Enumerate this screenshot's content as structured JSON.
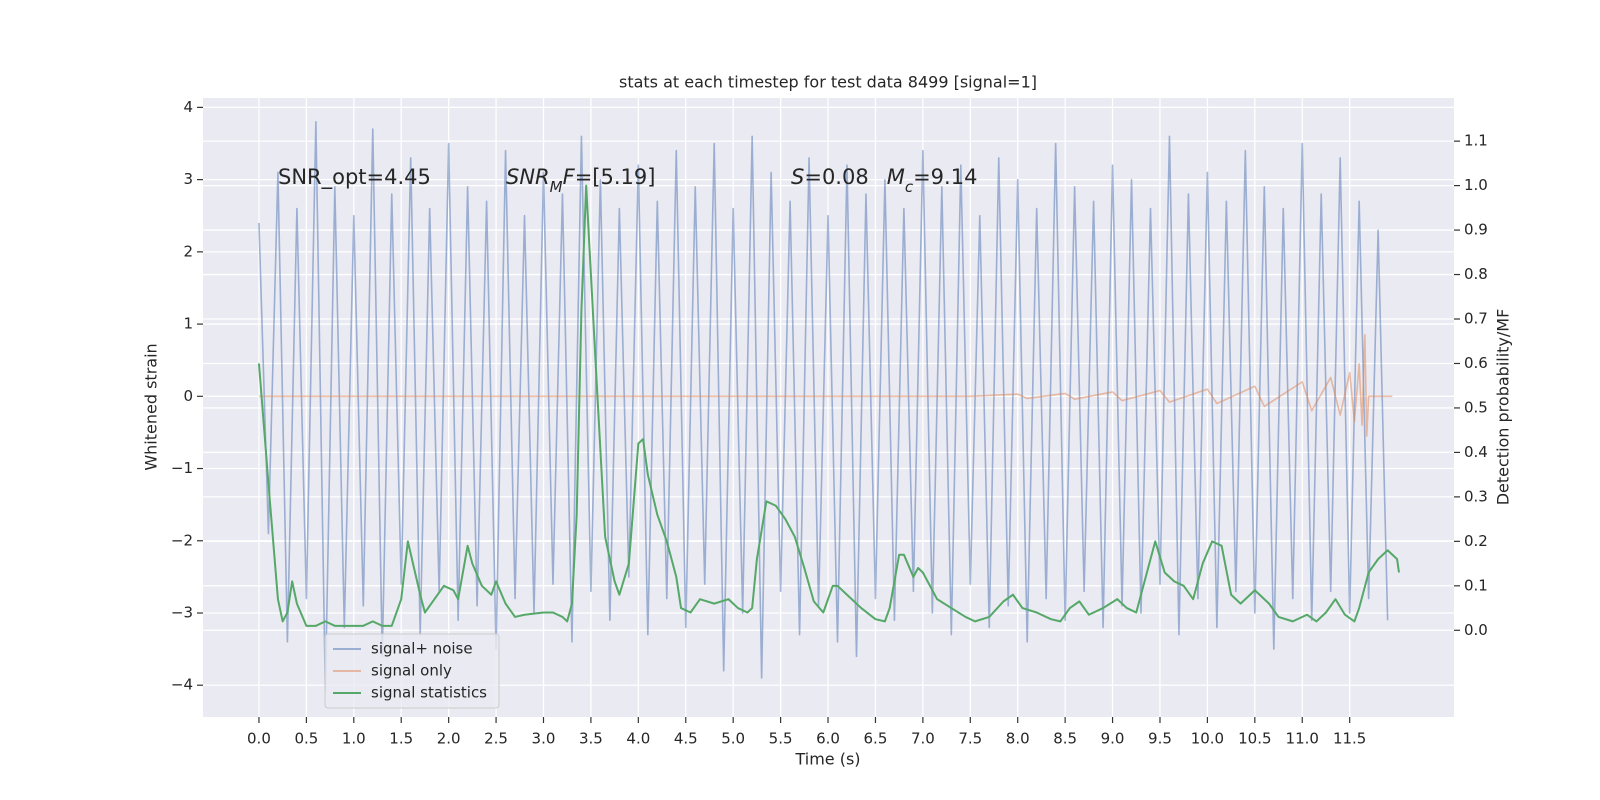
{
  "chart_data": {
    "type": "line",
    "title": "stats at each timestep for test data 8499 [signal=1]",
    "xlabel": "Time (s)",
    "ylabel": "Whitened strain",
    "y2label": "Detection probability/MF",
    "xlim": [
      -0.59,
      12.6
    ],
    "ylim": [
      -4.44,
      4.13
    ],
    "y2lim": [
      -0.195,
      1.197
    ],
    "xticks": [
      {
        "value": 0,
        "label": "0.0"
      },
      {
        "value": 0.5,
        "label": "0.5"
      },
      {
        "value": 1,
        "label": "1.0"
      },
      {
        "value": 1.5,
        "label": "1.5"
      },
      {
        "value": 2,
        "label": "2.0"
      },
      {
        "value": 2.5,
        "label": "2.5"
      },
      {
        "value": 3,
        "label": "3.0"
      },
      {
        "value": 3.5,
        "label": "3.5"
      },
      {
        "value": 4,
        "label": "4.0"
      },
      {
        "value": 4.5,
        "label": "4.5"
      },
      {
        "value": 5,
        "label": "5.0"
      },
      {
        "value": 5.5,
        "label": "5.5"
      },
      {
        "value": 6,
        "label": "6.0"
      },
      {
        "value": 6.5,
        "label": "6.5"
      },
      {
        "value": 7,
        "label": "7.0"
      },
      {
        "value": 7.5,
        "label": "7.5"
      },
      {
        "value": 8,
        "label": "8.0"
      },
      {
        "value": 8.5,
        "label": "8.5"
      },
      {
        "value": 9,
        "label": "9.0"
      },
      {
        "value": 9.5,
        "label": "9.5"
      },
      {
        "value": 10,
        "label": "10.0"
      },
      {
        "value": 10.5,
        "label": "10.5"
      },
      {
        "value": 11,
        "label": "11.0"
      },
      {
        "value": 11.5,
        "label": "11.5"
      }
    ],
    "yticks": [
      {
        "value": -4,
        "label": "−4"
      },
      {
        "value": -3,
        "label": "−3"
      },
      {
        "value": -2,
        "label": "−2"
      },
      {
        "value": -1,
        "label": "−1"
      },
      0,
      1,
      2,
      3,
      4
    ],
    "y2ticks": [
      {
        "value": 0,
        "label": "0.0"
      },
      {
        "value": 0.1,
        "label": "0.1"
      },
      {
        "value": 0.2,
        "label": "0.2"
      },
      {
        "value": 0.3,
        "label": "0.3"
      },
      {
        "value": 0.4,
        "label": "0.4"
      },
      {
        "value": 0.5,
        "label": "0.5"
      },
      {
        "value": 0.6,
        "label": "0.6"
      },
      {
        "value": 0.7,
        "label": "0.7"
      },
      {
        "value": 0.8,
        "label": "0.8"
      },
      {
        "value": 0.9,
        "label": "0.9"
      },
      {
        "value": 1.0,
        "label": "1.0"
      },
      {
        "value": 1.1,
        "label": "1.1"
      }
    ],
    "grid": true,
    "legend": "lower left",
    "annotations": [
      [
        {
          "text": "SNR_opt=4.45"
        }
      ],
      [
        {
          "text": "SNR",
          "style": "italic"
        },
        {
          "text": "M",
          "style": "italic-sub"
        },
        {
          "text": "F",
          "style": "italic"
        },
        {
          "text": "=[5.19]"
        }
      ],
      [
        {
          "text": "S",
          "style": "italic"
        },
        {
          "text": "=0.08"
        },
        {
          "text": "M",
          "style": "italic"
        },
        {
          "text": "c",
          "style": "italic-sub"
        },
        {
          "text": "=9.14"
        }
      ]
    ],
    "series": [
      {
        "name": "signal+ noise",
        "color": "#4c72b0",
        "opacity": 0.5,
        "x": [
          0,
          0.1,
          0.2,
          0.3,
          0.4,
          0.5,
          0.6,
          0.7,
          0.8,
          0.9,
          1,
          1.1,
          1.2,
          1.3,
          1.4,
          1.5,
          1.6,
          1.7,
          1.8,
          1.9,
          2,
          2.1,
          2.2,
          2.3,
          2.4,
          2.5,
          2.6,
          2.7,
          2.8,
          2.9,
          3,
          3.1,
          3.2,
          3.3,
          3.4,
          3.5,
          3.6,
          3.7,
          3.8,
          3.9,
          4,
          4.1,
          4.2,
          4.3,
          4.4,
          4.5,
          4.6,
          4.7,
          4.8,
          4.9,
          5,
          5.1,
          5.2,
          5.3,
          5.4,
          5.5,
          5.6,
          5.7,
          5.8,
          5.9,
          6,
          6.1,
          6.2,
          6.3,
          6.4,
          6.5,
          6.6,
          6.7,
          6.8,
          6.9,
          7,
          7.1,
          7.2,
          7.3,
          7.4,
          7.5,
          7.6,
          7.7,
          7.8,
          7.9,
          8,
          8.1,
          8.2,
          8.3,
          8.4,
          8.5,
          8.6,
          8.7,
          8.8,
          8.9,
          9,
          9.1,
          9.2,
          9.3,
          9.4,
          9.5,
          9.6,
          9.7,
          9.8,
          9.9,
          10,
          10.1,
          10.2,
          10.3,
          10.4,
          10.5,
          10.6,
          10.7,
          10.8,
          10.9,
          11,
          11.1,
          11.2,
          11.3,
          11.4,
          11.5,
          11.6,
          11.7,
          11.8,
          11.9
        ],
        "values": [
          2.4,
          -1.9,
          3.1,
          -3.4,
          2.6,
          -2.8,
          3.8,
          -4.1,
          2.9,
          -3.2,
          2.5,
          -2.9,
          3.7,
          -3.6,
          2.8,
          -2.6,
          3.3,
          -3.3,
          2.6,
          -2.7,
          3.5,
          -3.1,
          2.9,
          -2.9,
          2.7,
          -3.5,
          3.4,
          -2.8,
          2.5,
          -3.0,
          3.1,
          -2.6,
          2.8,
          -3.4,
          3.6,
          -2.7,
          3.0,
          -3.1,
          2.6,
          -2.5,
          3.2,
          -3.3,
          2.7,
          -2.8,
          3.4,
          -3.2,
          2.9,
          -2.6,
          3.5,
          -3.8,
          2.6,
          -3.0,
          3.6,
          -3.9,
          3.1,
          -2.7,
          2.7,
          -3.3,
          3.3,
          -2.9,
          2.5,
          -3.4,
          3.2,
          -3.6,
          2.8,
          -2.8,
          3.0,
          -3.1,
          2.6,
          -2.7,
          3.4,
          -3.0,
          2.9,
          -3.3,
          3.2,
          -2.6,
          2.5,
          -3.2,
          3.3,
          -2.9,
          3.0,
          -3.4,
          2.6,
          -2.8,
          3.5,
          -3.1,
          2.9,
          -2.7,
          2.7,
          -3.2,
          3.2,
          -2.9,
          3.0,
          -3.0,
          2.6,
          -2.6,
          3.6,
          -3.3,
          2.8,
          -2.8,
          3.1,
          -3.2,
          2.7,
          -2.7,
          3.4,
          -3.0,
          2.9,
          -3.5,
          2.6,
          -2.8,
          3.5,
          -3.1,
          2.8,
          -2.7,
          3.3,
          -3.0,
          2.7,
          -2.8,
          2.3,
          -3.1
        ]
      },
      {
        "name": "signal only",
        "color": "#dd8452",
        "opacity": 0.5,
        "x": [
          0,
          7.5,
          8,
          8.1,
          8.5,
          8.6,
          9,
          9.1,
          9.5,
          9.6,
          10,
          10.1,
          10.5,
          10.6,
          11,
          11.1,
          11.3,
          11.4,
          11.5,
          11.55,
          11.6,
          11.63,
          11.66,
          11.68,
          11.7,
          11.95
        ],
        "values": [
          0,
          0,
          0.03,
          -0.03,
          0.04,
          -0.04,
          0.06,
          -0.06,
          0.08,
          -0.08,
          0.1,
          -0.1,
          0.14,
          -0.14,
          0.2,
          -0.2,
          0.26,
          -0.26,
          0.33,
          -0.35,
          0.45,
          -0.4,
          0.85,
          -0.55,
          0,
          0
        ]
      },
      {
        "name": "signal statistics",
        "color": "#55a868",
        "axis": "y2",
        "x": [
          0,
          0.1,
          0.2,
          0.25,
          0.3,
          0.35,
          0.4,
          0.5,
          0.6,
          0.7,
          0.8,
          0.9,
          1.0,
          1.1,
          1.2,
          1.3,
          1.4,
          1.5,
          1.57,
          1.7,
          1.75,
          1.85,
          1.95,
          2.05,
          2.1,
          2.2,
          2.25,
          2.35,
          2.45,
          2.5,
          2.6,
          2.7,
          2.8,
          3.0,
          3.1,
          3.2,
          3.25,
          3.3,
          3.35,
          3.4,
          3.45,
          3.55,
          3.65,
          3.75,
          3.8,
          3.9,
          4.0,
          4.05,
          4.1,
          4.2,
          4.3,
          4.4,
          4.45,
          4.55,
          4.65,
          4.8,
          4.95,
          5.05,
          5.15,
          5.2,
          5.25,
          5.35,
          5.45,
          5.55,
          5.65,
          5.75,
          5.85,
          5.95,
          6.05,
          6.1,
          6.2,
          6.35,
          6.5,
          6.6,
          6.65,
          6.75,
          6.8,
          6.9,
          6.95,
          7.0,
          7.15,
          7.3,
          7.45,
          7.55,
          7.7,
          7.85,
          7.95,
          8.05,
          8.2,
          8.35,
          8.45,
          8.55,
          8.65,
          8.75,
          8.9,
          9.05,
          9.15,
          9.25,
          9.35,
          9.45,
          9.55,
          9.65,
          9.75,
          9.85,
          9.95,
          10.05,
          10.15,
          10.25,
          10.35,
          10.5,
          10.65,
          10.75,
          10.9,
          11.05,
          11.15,
          11.25,
          11.35,
          11.45,
          11.55,
          11.6,
          11.7,
          11.8,
          11.9,
          12.0,
          12.02
        ],
        "values": [
          0.6,
          0.33,
          0.07,
          0.02,
          0.04,
          0.11,
          0.06,
          0.01,
          0.01,
          0.02,
          0.01,
          0.01,
          0.01,
          0.01,
          0.02,
          0.01,
          0.01,
          0.07,
          0.2,
          0.08,
          0.04,
          0.07,
          0.1,
          0.09,
          0.07,
          0.19,
          0.15,
          0.1,
          0.08,
          0.11,
          0.06,
          0.03,
          0.035,
          0.04,
          0.04,
          0.03,
          0.02,
          0.06,
          0.26,
          0.72,
          1.0,
          0.6,
          0.21,
          0.11,
          0.08,
          0.15,
          0.42,
          0.43,
          0.35,
          0.26,
          0.2,
          0.12,
          0.05,
          0.04,
          0.07,
          0.06,
          0.07,
          0.05,
          0.04,
          0.05,
          0.16,
          0.29,
          0.28,
          0.25,
          0.21,
          0.14,
          0.065,
          0.04,
          0.1,
          0.1,
          0.08,
          0.05,
          0.025,
          0.02,
          0.05,
          0.17,
          0.17,
          0.12,
          0.14,
          0.13,
          0.07,
          0.05,
          0.03,
          0.02,
          0.03,
          0.065,
          0.08,
          0.05,
          0.04,
          0.025,
          0.02,
          0.05,
          0.065,
          0.035,
          0.05,
          0.07,
          0.05,
          0.04,
          0.12,
          0.2,
          0.13,
          0.11,
          0.1,
          0.07,
          0.15,
          0.2,
          0.19,
          0.08,
          0.06,
          0.09,
          0.06,
          0.03,
          0.02,
          0.035,
          0.02,
          0.04,
          0.07,
          0.035,
          0.02,
          0.05,
          0.13,
          0.16,
          0.18,
          0.16,
          0.13
        ]
      }
    ]
  }
}
